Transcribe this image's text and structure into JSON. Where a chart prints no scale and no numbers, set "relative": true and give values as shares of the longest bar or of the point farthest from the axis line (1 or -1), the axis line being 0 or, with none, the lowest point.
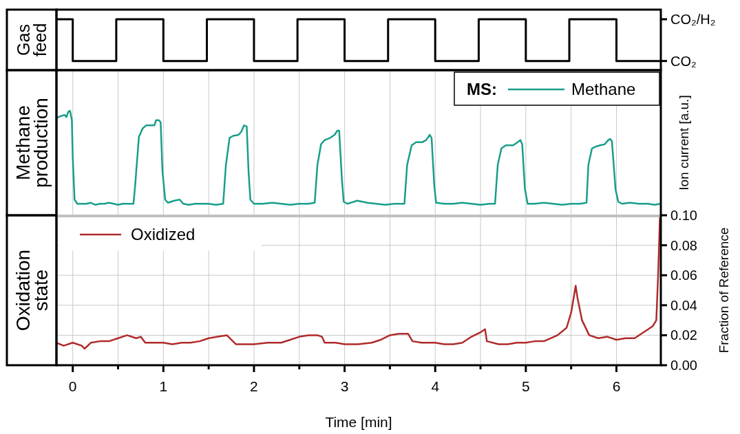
{
  "chart_data": [
    {
      "type": "step",
      "title": "Gas feed",
      "xlim": [
        -0.18,
        6.49
      ],
      "relative": true,
      "tick_labels": false,
      "annotations": [
        "CO₂/H₂",
        "CO₂"
      ],
      "series": [
        {
          "color": "#000000",
          "x": [
            -0.18,
            0,
            0.48,
            1,
            1.48,
            2,
            2.48,
            3,
            3.48,
            4,
            4.48,
            5,
            5.48,
            6,
            6.49
          ],
          "values": [
            1,
            0.18,
            1,
            0.18,
            1,
            0.18,
            1,
            0.18,
            1,
            0.18,
            1,
            0.18,
            1,
            0.18,
            0.18
          ]
        }
      ]
    },
    {
      "type": "line",
      "title": "Methane production",
      "ylabel": "Ion current [a.u.]",
      "relative": true,
      "legend": "top right",
      "legend_title": "MS:",
      "grid": "x",
      "tick_labels": false,
      "xlim": [
        -0.18,
        6.49
      ],
      "xticks": [
        {
          "value": 0,
          "label": null
        },
        {
          "value": 0.5,
          "label": null
        },
        {
          "value": 1,
          "label": null
        },
        {
          "value": 1.5,
          "label": null
        },
        {
          "value": 2,
          "label": null
        },
        {
          "value": 2.5,
          "label": null
        },
        {
          "value": 3,
          "label": null
        },
        {
          "value": 3.5,
          "label": null
        },
        {
          "value": 4,
          "label": null
        },
        {
          "value": 4.5,
          "label": null
        },
        {
          "value": 5,
          "label": null
        },
        {
          "value": 5.5,
          "label": null
        },
        {
          "value": 6,
          "label": null
        }
      ],
      "series": [
        {
          "name": "Methane",
          "color": "#189e8a",
          "x": [
            -0.18,
            -0.13,
            -0.09,
            -0.07,
            -0.05,
            -0.03,
            -0.01,
            0,
            0.02,
            0.05,
            0.1,
            0.15,
            0.2,
            0.25,
            0.3,
            0.35,
            0.4,
            0.45,
            0.5,
            0.55,
            0.6,
            0.67,
            0.69,
            0.73,
            0.77,
            0.81,
            0.86,
            0.9,
            0.92,
            0.95,
            0.97,
            0.99,
            1.02,
            1.05,
            1.12,
            1.18,
            1.22,
            1.28,
            1.35,
            1.42,
            1.5,
            1.58,
            1.66,
            1.69,
            1.73,
            1.77,
            1.83,
            1.86,
            1.89,
            1.92,
            1.94,
            1.96,
            2,
            2.1,
            2.2,
            2.3,
            2.4,
            2.5,
            2.6,
            2.67,
            2.7,
            2.74,
            2.78,
            2.84,
            2.89,
            2.92,
            2.94,
            2.97,
            2.99,
            3.03,
            3.14,
            3.25,
            3.35,
            3.45,
            3.55,
            3.66,
            3.69,
            3.74,
            3.79,
            3.86,
            3.9,
            3.94,
            3.96,
            3.99,
            4.01,
            4.1,
            4.2,
            4.3,
            4.4,
            4.5,
            4.6,
            4.66,
            4.69,
            4.73,
            4.78,
            4.86,
            4.91,
            4.94,
            4.96,
            4.99,
            5.02,
            5.1,
            5.2,
            5.3,
            5.4,
            5.5,
            5.6,
            5.67,
            5.69,
            5.73,
            5.78,
            5.82,
            5.87,
            5.91,
            5.93,
            5.95,
            5.99,
            6.02,
            6.06,
            6.15,
            6.25,
            6.35,
            6.42,
            6.49
          ],
          "values": [
            0.93,
            0.95,
            0.96,
            0.94,
            0.99,
            1,
            0.91,
            0.55,
            0.15,
            0.11,
            0.11,
            0.11,
            0.12,
            0.1,
            0.11,
            0.11,
            0.12,
            0.11,
            0.1,
            0.11,
            0.11,
            0.11,
            0.3,
            0.75,
            0.83,
            0.86,
            0.86,
            0.86,
            0.91,
            0.91,
            0.89,
            0.42,
            0.15,
            0.12,
            0.14,
            0.15,
            0.11,
            0.1,
            0.11,
            0.11,
            0.11,
            0.1,
            0.11,
            0.48,
            0.74,
            0.76,
            0.77,
            0.8,
            0.86,
            0.85,
            0.42,
            0.15,
            0.11,
            0.11,
            0.12,
            0.11,
            0.1,
            0.11,
            0.11,
            0.12,
            0.48,
            0.68,
            0.72,
            0.74,
            0.77,
            0.81,
            0.81,
            0.35,
            0.13,
            0.11,
            0.14,
            0.12,
            0.11,
            0.1,
            0.11,
            0.11,
            0.48,
            0.67,
            0.7,
            0.7,
            0.72,
            0.77,
            0.74,
            0.28,
            0.12,
            0.11,
            0.11,
            0.12,
            0.11,
            0.1,
            0.11,
            0.11,
            0.48,
            0.64,
            0.67,
            0.67,
            0.7,
            0.72,
            0.68,
            0.25,
            0.11,
            0.11,
            0.12,
            0.11,
            0.1,
            0.11,
            0.11,
            0.12,
            0.48,
            0.64,
            0.66,
            0.67,
            0.68,
            0.72,
            0.73,
            0.71,
            0.25,
            0.13,
            0.11,
            0.12,
            0.11,
            0.11,
            0.1,
            0.11
          ]
        }
      ]
    },
    {
      "type": "line",
      "title": "Oxidation state",
      "ylabel": "Fraction of Reference",
      "xlabel": "Time [min]",
      "legend": "top left",
      "grid": true,
      "xlim": [
        -0.18,
        6.49
      ],
      "ylim": [
        0,
        0.1
      ],
      "xticks": [
        0,
        {
          "value": 0.5,
          "label": null
        },
        1,
        {
          "value": 1.5,
          "label": null
        },
        2,
        {
          "value": 2.5,
          "label": null
        },
        3,
        {
          "value": 3.5,
          "label": null
        },
        4,
        {
          "value": 4.5,
          "label": null
        },
        5,
        {
          "value": 5.5,
          "label": null
        },
        6
      ],
      "yticks": [
        {
          "value": 0,
          "label": "0.00"
        },
        {
          "value": 0.02,
          "label": "0.02"
        },
        {
          "value": 0.04,
          "label": "0.04"
        },
        {
          "value": 0.06,
          "label": "0.06"
        },
        {
          "value": 0.08,
          "label": "0.08"
        },
        {
          "value": 0.1,
          "label": "0.10"
        }
      ],
      "series": [
        {
          "name": "Oxidized",
          "color": "#b02a2a",
          "x": [
            -0.18,
            -0.1,
            0,
            0.1,
            0.13,
            0.2,
            0.3,
            0.4,
            0.5,
            0.6,
            0.7,
            0.75,
            0.8,
            0.9,
            1,
            1.1,
            1.2,
            1.3,
            1.4,
            1.5,
            1.6,
            1.7,
            1.75,
            1.8,
            1.9,
            2,
            2.15,
            2.3,
            2.4,
            2.5,
            2.6,
            2.7,
            2.75,
            2.78,
            2.9,
            3,
            3.15,
            3.3,
            3.4,
            3.5,
            3.6,
            3.7,
            3.75,
            3.85,
            4,
            4.1,
            4.2,
            4.3,
            4.4,
            4.5,
            4.55,
            4.57,
            4.7,
            4.8,
            4.9,
            5,
            5.1,
            5.2,
            5.35,
            5.45,
            5.5,
            5.55,
            5.57,
            5.62,
            5.7,
            5.8,
            5.9,
            6,
            6.1,
            6.2,
            6.35,
            6.4,
            6.44,
            6.46,
            6.48
          ],
          "values": [
            0.015,
            0.013,
            0.015,
            0.013,
            0.011,
            0.015,
            0.016,
            0.016,
            0.018,
            0.02,
            0.018,
            0.019,
            0.015,
            0.015,
            0.015,
            0.014,
            0.015,
            0.015,
            0.016,
            0.018,
            0.019,
            0.02,
            0.017,
            0.014,
            0.014,
            0.014,
            0.015,
            0.015,
            0.017,
            0.019,
            0.02,
            0.02,
            0.019,
            0.015,
            0.015,
            0.014,
            0.014,
            0.015,
            0.017,
            0.02,
            0.021,
            0.021,
            0.016,
            0.015,
            0.015,
            0.014,
            0.014,
            0.015,
            0.019,
            0.022,
            0.024,
            0.016,
            0.014,
            0.014,
            0.015,
            0.015,
            0.016,
            0.016,
            0.02,
            0.025,
            0.035,
            0.053,
            0.045,
            0.03,
            0.02,
            0.018,
            0.019,
            0.017,
            0.018,
            0.018,
            0.024,
            0.026,
            0.03,
            0.06,
            0.099
          ]
        }
      ]
    }
  ]
}
